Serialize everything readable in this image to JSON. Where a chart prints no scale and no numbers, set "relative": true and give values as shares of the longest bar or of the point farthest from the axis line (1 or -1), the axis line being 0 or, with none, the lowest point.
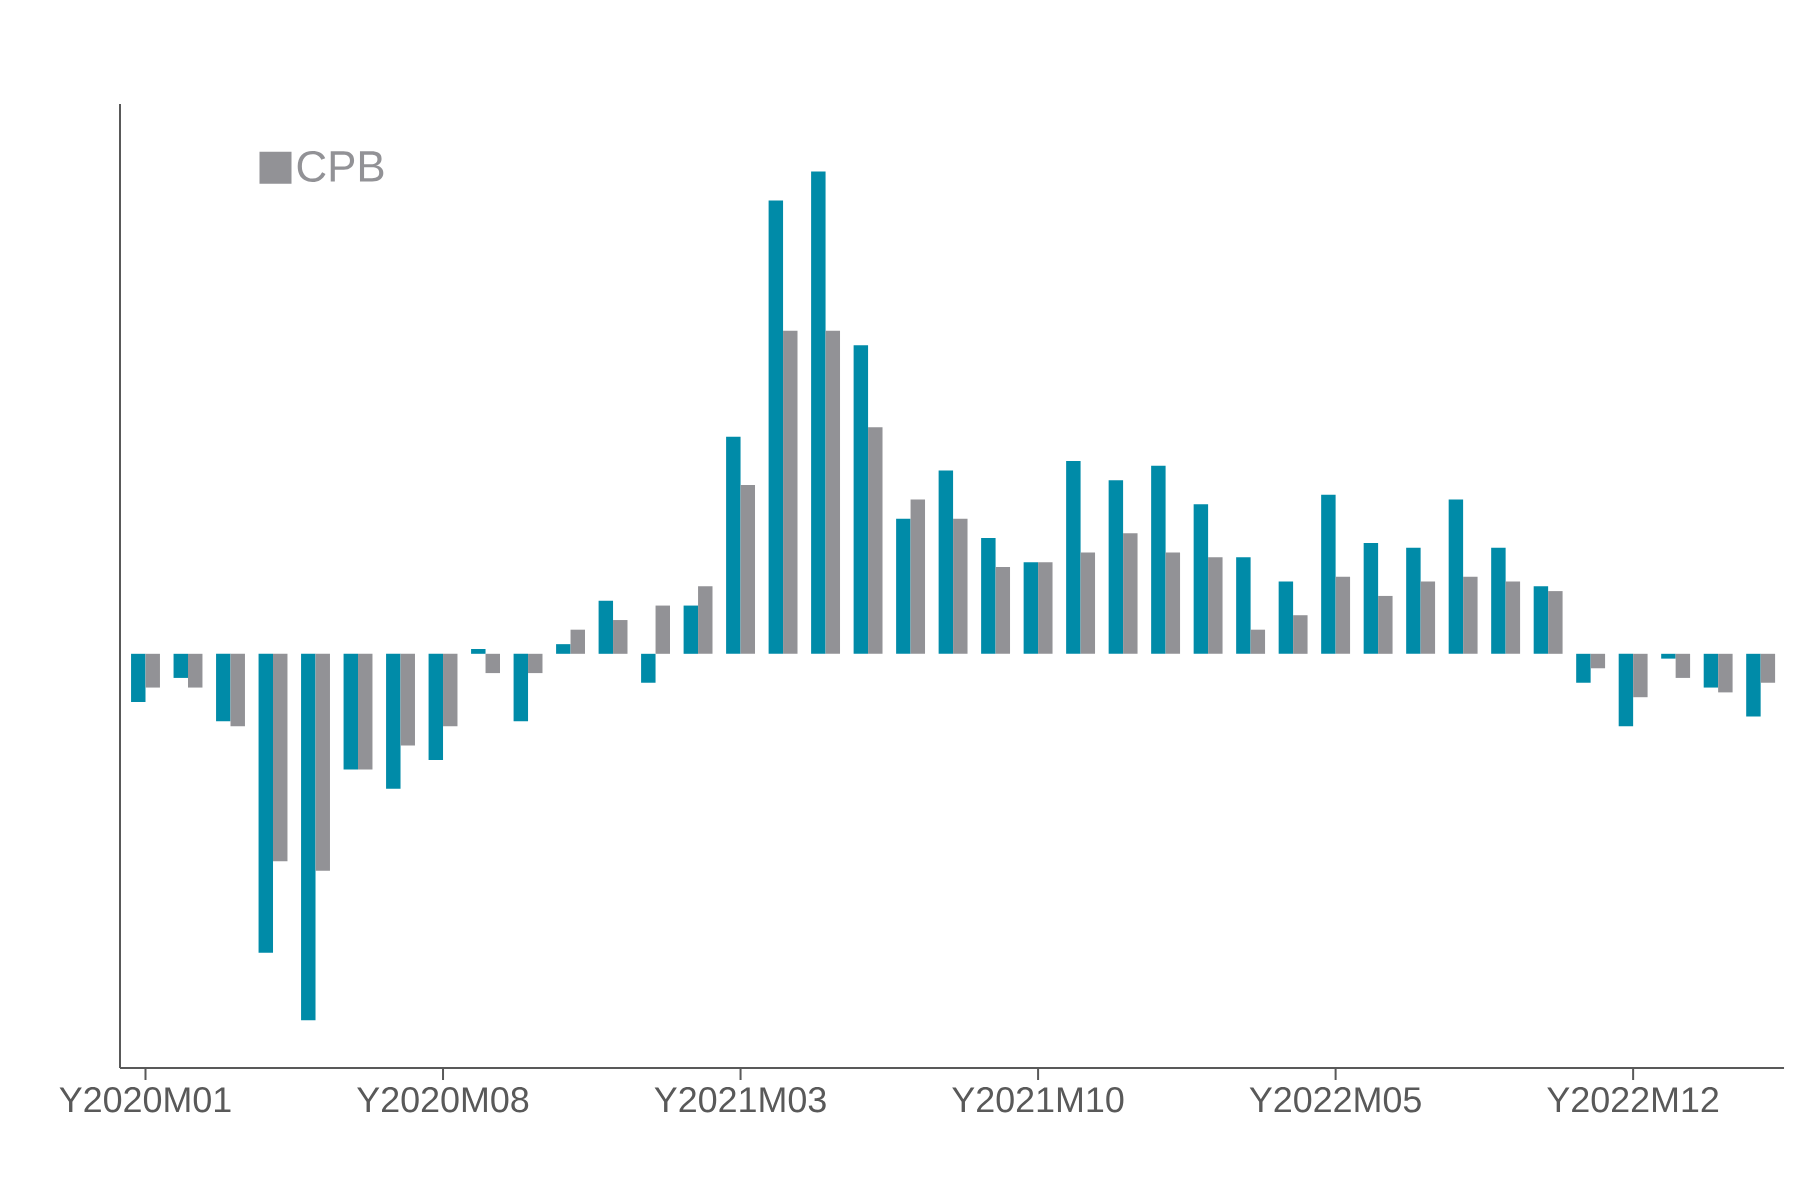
{
  "chart_data": {
    "type": "bar",
    "relative": true,
    "legend": "top left",
    "categories": [
      "Y2020M01",
      null,
      null,
      null,
      null,
      null,
      null,
      "Y2020M08",
      null,
      null,
      null,
      null,
      null,
      null,
      "Y2021M03",
      null,
      null,
      null,
      null,
      null,
      null,
      "Y2021M10",
      null,
      null,
      null,
      null,
      null,
      null,
      "Y2022M05",
      null,
      null,
      null,
      null,
      null,
      null,
      "Y2022M12",
      null,
      null,
      null
    ],
    "series": [
      {
        "color": "#008ba8",
        "values": [
          -0.1,
          -0.05,
          -0.14,
          -0.62,
          -0.76,
          -0.24,
          -0.28,
          -0.22,
          0.01,
          -0.14,
          0.02,
          0.11,
          -0.06,
          0.1,
          0.45,
          0.94,
          1,
          0.64,
          0.28,
          0.38,
          0.24,
          0.19,
          0.4,
          0.36,
          0.39,
          0.31,
          0.2,
          0.15,
          0.33,
          0.23,
          0.22,
          0.32,
          0.22,
          0.14,
          -0.06,
          -0.15,
          -0.01,
          -0.07,
          -0.13
        ]
      },
      {
        "name": "CPB",
        "color": "#929296",
        "values": [
          -0.07,
          -0.07,
          -0.15,
          -0.43,
          -0.45,
          -0.24,
          -0.19,
          -0.15,
          -0.04,
          -0.04,
          0.05,
          0.07,
          0.1,
          0.14,
          0.35,
          0.67,
          0.67,
          0.47,
          0.32,
          0.28,
          0.18,
          0.19,
          0.21,
          0.25,
          0.21,
          0.2,
          0.05,
          0.08,
          0.16,
          0.12,
          0.15,
          0.16,
          0.15,
          0.13,
          -0.03,
          -0.09,
          -0.05,
          -0.08,
          -0.06
        ]
      }
    ]
  }
}
